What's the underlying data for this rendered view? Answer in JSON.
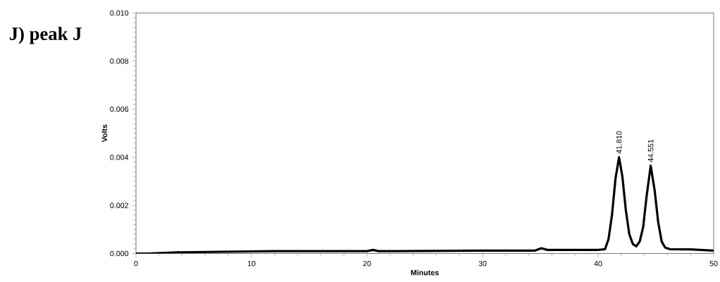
{
  "chart_data": {
    "type": "line",
    "title": "**J) peak J**",
    "xlabel": "Minutes",
    "ylabel": "Volts",
    "xlim": [
      0,
      50
    ],
    "ylim": [
      0,
      0.01
    ],
    "xticks": [
      0,
      10,
      20,
      30,
      40,
      50
    ],
    "yticks": [
      {
        "value": 0,
        "label": "0.000"
      },
      {
        "value": 0.002,
        "label": "0.002"
      },
      {
        "value": 0.004,
        "label": "0.004"
      },
      {
        "value": 0.006,
        "label": "0.006"
      },
      {
        "value": 0.008,
        "label": "0.008"
      },
      {
        "value": 0.01,
        "label": "0.010"
      }
    ],
    "x": [
      0,
      1,
      3.5,
      12,
      20,
      20.5,
      21,
      22.5,
      30,
      34.5,
      35.1,
      35.6,
      40,
      40.6,
      40.9,
      41.2,
      41.5,
      41.81,
      42.1,
      42.4,
      42.7,
      43.0,
      43.3,
      43.6,
      43.9,
      44.2,
      44.551,
      44.9,
      45.2,
      45.5,
      45.8,
      46.2,
      48,
      50
    ],
    "series": [
      {
        "color": "#000000",
        "values": [
          0.0,
          0.0,
          5e-05,
          0.0001,
          0.0001,
          0.00015,
          0.0001,
          0.0001,
          0.00012,
          0.00012,
          0.00022,
          0.00015,
          0.00015,
          0.00018,
          0.0006,
          0.0016,
          0.0031,
          0.004,
          0.0032,
          0.0018,
          0.0008,
          0.0004,
          0.0003,
          0.0005,
          0.0011,
          0.0024,
          0.00365,
          0.0026,
          0.0013,
          0.0005,
          0.00025,
          0.00018,
          0.00017,
          0.00012
        ]
      }
    ],
    "annotations": [
      {
        "text": "41.810",
        "x": 41.81,
        "y": 0.0041
      },
      {
        "text": "44.551",
        "x": 44.551,
        "y": 0.00375
      }
    ],
    "grid": false,
    "marker": "none",
    "line_style": "solid"
  }
}
